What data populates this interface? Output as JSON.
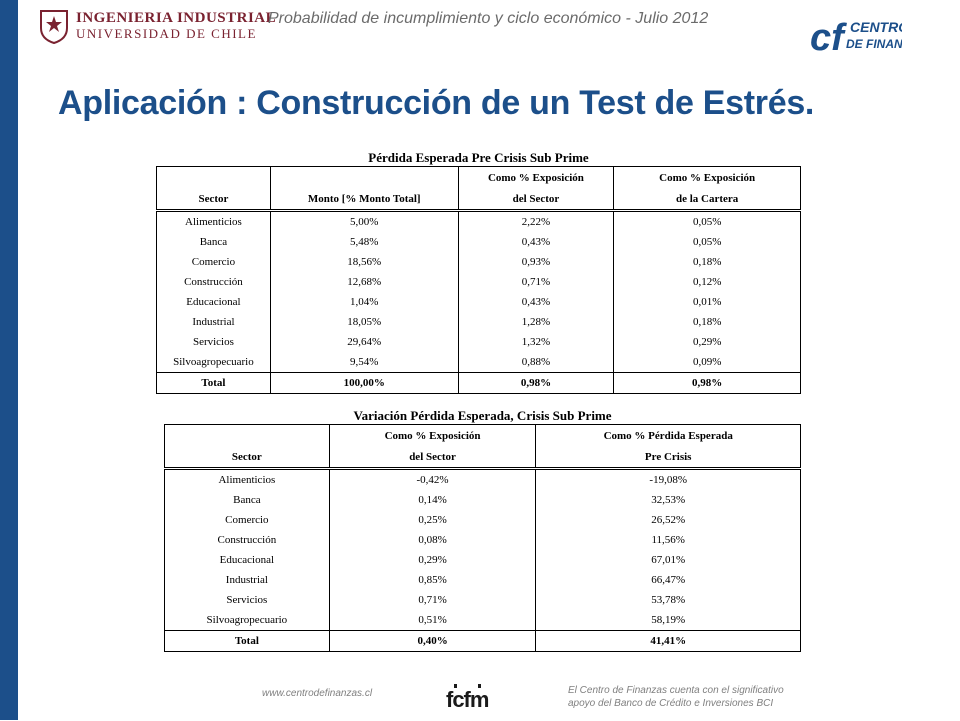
{
  "header": {
    "ing_line1": "INGENIERIA INDUSTRIAL",
    "ing_line2": "UNIVERSIDAD DE CHILE",
    "top_title": "Probabilidad de incumplimiento y ciclo económico - Julio 2012",
    "cf_line1": "CENTRO",
    "cf_line2": "DE FINANZAS"
  },
  "main_title": "Aplicación : Construcción de un Test de Estrés.",
  "table1": {
    "title": "Pérdida Esperada Pre Crisis Sub Prime",
    "headers": {
      "sector": "Sector",
      "monto": "Monto [% Monto Total]",
      "exp_sector_1": "Como % Exposición",
      "exp_sector_2": "del Sector",
      "exp_cartera_1": "Como % Exposición",
      "exp_cartera_2": "de la Cartera"
    },
    "rows": [
      [
        "Alimenticios",
        "5,00%",
        "2,22%",
        "0,05%"
      ],
      [
        "Banca",
        "5,48%",
        "0,43%",
        "0,05%"
      ],
      [
        "Comercio",
        "18,56%",
        "0,93%",
        "0,18%"
      ],
      [
        "Construcción",
        "12,68%",
        "0,71%",
        "0,12%"
      ],
      [
        "Educacional",
        "1,04%",
        "0,43%",
        "0,01%"
      ],
      [
        "Industrial",
        "18,05%",
        "1,28%",
        "0,18%"
      ],
      [
        "Servicios",
        "29,64%",
        "1,32%",
        "0,29%"
      ],
      [
        "Silvoagropecuario",
        "9,54%",
        "0,88%",
        "0,09%"
      ]
    ],
    "total": [
      "Total",
      "100,00%",
      "0,98%",
      "0,98%"
    ]
  },
  "table2": {
    "title": "Variación Pérdida Esperada, Crisis Sub Prime",
    "headers": {
      "sector": "Sector",
      "exp_sector_1": "Como % Exposición",
      "exp_sector_2": "del Sector",
      "perdida_1": "Como % Pérdida Esperada",
      "perdida_2": "Pre Crisis"
    },
    "rows": [
      [
        "Alimenticios",
        "-0,42%",
        "-19,08%"
      ],
      [
        "Banca",
        "0,14%",
        "32,53%"
      ],
      [
        "Comercio",
        "0,25%",
        "26,52%"
      ],
      [
        "Construcción",
        "0,08%",
        "11,56%"
      ],
      [
        "Educacional",
        "0,29%",
        "67,01%"
      ],
      [
        "Industrial",
        "0,85%",
        "66,47%"
      ],
      [
        "Servicios",
        "0,71%",
        "53,78%"
      ],
      [
        "Silvoagropecuario",
        "0,51%",
        "58,19%"
      ]
    ],
    "total": [
      "Total",
      "0,40%",
      "41,41%"
    ]
  },
  "footer": {
    "url": "www.centrodefinanzas.cl",
    "fcfm": "fcfm",
    "note_line1": "El Centro de Finanzas cuenta con el significativo",
    "note_line2": "apoyo del Banco de Crédito e Inversiones BCI"
  },
  "colors": {
    "brand_blue": "#1c4f8a",
    "ing_red": "#7a2230",
    "gray_text": "#6b6b6b"
  }
}
